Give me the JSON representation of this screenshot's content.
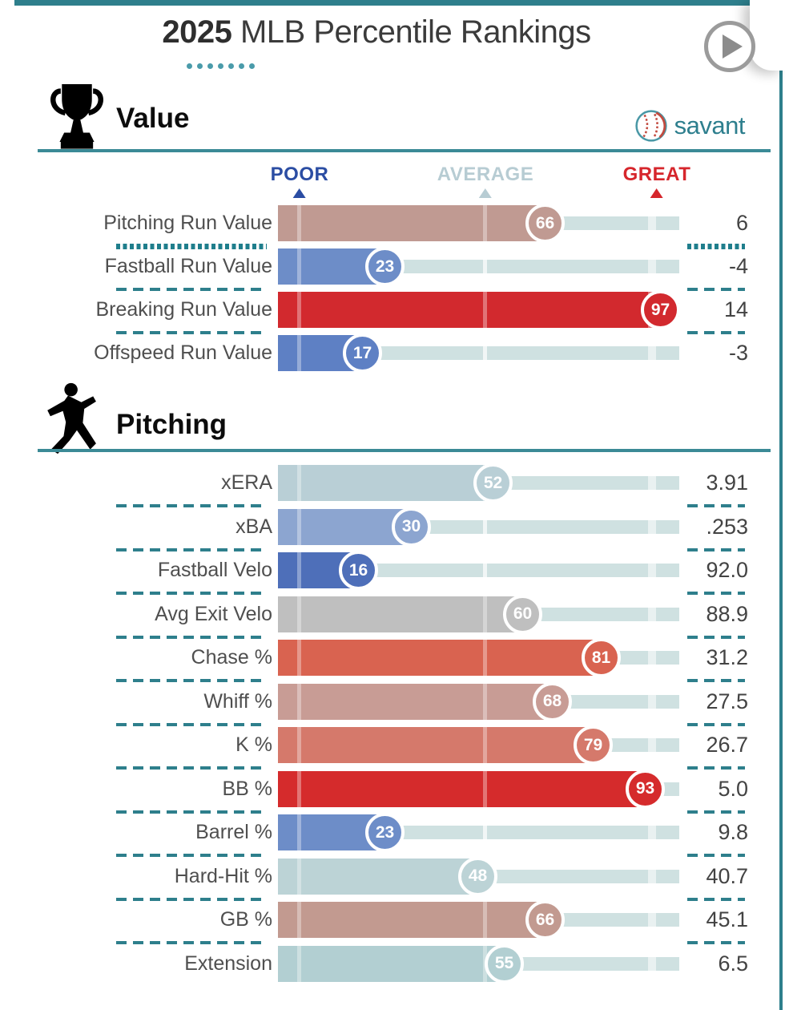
{
  "title": {
    "year": "2025",
    "rest": " MLB Percentile Rankings"
  },
  "brand": {
    "name": "savant"
  },
  "scale": {
    "poor": "POOR",
    "average": "AVERAGE",
    "great": "GREAT"
  },
  "colors": {
    "frame_teal": "#2E7F8C",
    "underline_teal": "#3B8A96",
    "track": "#CFE1E1",
    "poor_label": "#2B4DA3",
    "average_label": "#B7CCD3",
    "great_label": "#D6262C",
    "brand_text": "#2E7F8E"
  },
  "sections": [
    {
      "label": "Value",
      "icon": "trophy-icon",
      "rows": [
        {
          "label": "Pitching Run Value",
          "percentile": 66,
          "value": "6",
          "color": "#C09A92",
          "divider_after": "dotted"
        },
        {
          "label": "Fastball Run Value",
          "percentile": 23,
          "value": "-4",
          "color": "#6D8DC8",
          "divider_after": "dashed"
        },
        {
          "label": "Breaking Run Value",
          "percentile": 97,
          "value": "14",
          "color": "#D2292E",
          "divider_after": "dashed"
        },
        {
          "label": "Offspeed Run Value",
          "percentile": 17,
          "value": "-3",
          "color": "#5E80C4",
          "divider_after": "none"
        }
      ]
    },
    {
      "label": "Pitching",
      "icon": "pitcher-icon",
      "rows": [
        {
          "label": "xERA",
          "percentile": 52,
          "value": "3.91",
          "color": "#B9CFD6",
          "divider_after": "dashed"
        },
        {
          "label": "xBA",
          "percentile": 30,
          "value": ".253",
          "color": "#8CA5D0",
          "divider_after": "dashed"
        },
        {
          "label": "Fastball Velo",
          "percentile": 16,
          "value": "92.0",
          "color": "#4E6FB9",
          "divider_after": "dashed"
        },
        {
          "label": "Avg Exit Velo",
          "percentile": 60,
          "value": "88.9",
          "color": "#BFBFBF",
          "divider_after": "dashed"
        },
        {
          "label": "Chase %",
          "percentile": 81,
          "value": "31.2",
          "color": "#D96350",
          "divider_after": "dashed"
        },
        {
          "label": "Whiff %",
          "percentile": 68,
          "value": "27.5",
          "color": "#C89C95",
          "divider_after": "dashed"
        },
        {
          "label": "K %",
          "percentile": 79,
          "value": "26.7",
          "color": "#D5796B",
          "divider_after": "dashed"
        },
        {
          "label": "BB %",
          "percentile": 93,
          "value": "5.0",
          "color": "#D52B2C",
          "divider_after": "dashed"
        },
        {
          "label": "Barrel %",
          "percentile": 23,
          "value": "9.8",
          "color": "#6D8DC8",
          "divider_after": "dashed"
        },
        {
          "label": "Hard-Hit %",
          "percentile": 48,
          "value": "40.7",
          "color": "#BCD3D6",
          "divider_after": "dashed"
        },
        {
          "label": "GB %",
          "percentile": 66,
          "value": "45.1",
          "color": "#C29A90",
          "divider_after": "dashed"
        },
        {
          "label": "Extension",
          "percentile": 55,
          "value": "6.5",
          "color": "#B2CFD2",
          "divider_after": "none"
        }
      ]
    }
  ],
  "chart_data": {
    "type": "bar",
    "title": "2025 MLB Percentile Rankings",
    "value_range": [
      0,
      100
    ],
    "scale_markers": [
      "POOR",
      "AVERAGE",
      "GREAT"
    ],
    "groups": [
      {
        "name": "Value",
        "metrics": [
          {
            "label": "Pitching Run Value",
            "percentile": 66,
            "value": "6"
          },
          {
            "label": "Fastball Run Value",
            "percentile": 23,
            "value": "-4"
          },
          {
            "label": "Breaking Run Value",
            "percentile": 97,
            "value": "14"
          },
          {
            "label": "Offspeed Run Value",
            "percentile": 17,
            "value": "-3"
          }
        ]
      },
      {
        "name": "Pitching",
        "metrics": [
          {
            "label": "xERA",
            "percentile": 52,
            "value": "3.91"
          },
          {
            "label": "xBA",
            "percentile": 30,
            "value": ".253"
          },
          {
            "label": "Fastball Velo",
            "percentile": 16,
            "value": "92.0"
          },
          {
            "label": "Avg Exit Velo",
            "percentile": 60,
            "value": "88.9"
          },
          {
            "label": "Chase %",
            "percentile": 81,
            "value": "31.2"
          },
          {
            "label": "Whiff %",
            "percentile": 68,
            "value": "27.5"
          },
          {
            "label": "K %",
            "percentile": 79,
            "value": "26.7"
          },
          {
            "label": "BB %",
            "percentile": 93,
            "value": "5.0"
          },
          {
            "label": "Barrel %",
            "percentile": 23,
            "value": "9.8"
          },
          {
            "label": "Hard-Hit %",
            "percentile": 48,
            "value": "40.7"
          },
          {
            "label": "GB %",
            "percentile": 66,
            "value": "45.1"
          },
          {
            "label": "Extension",
            "percentile": 55,
            "value": "6.5"
          }
        ]
      }
    ]
  }
}
